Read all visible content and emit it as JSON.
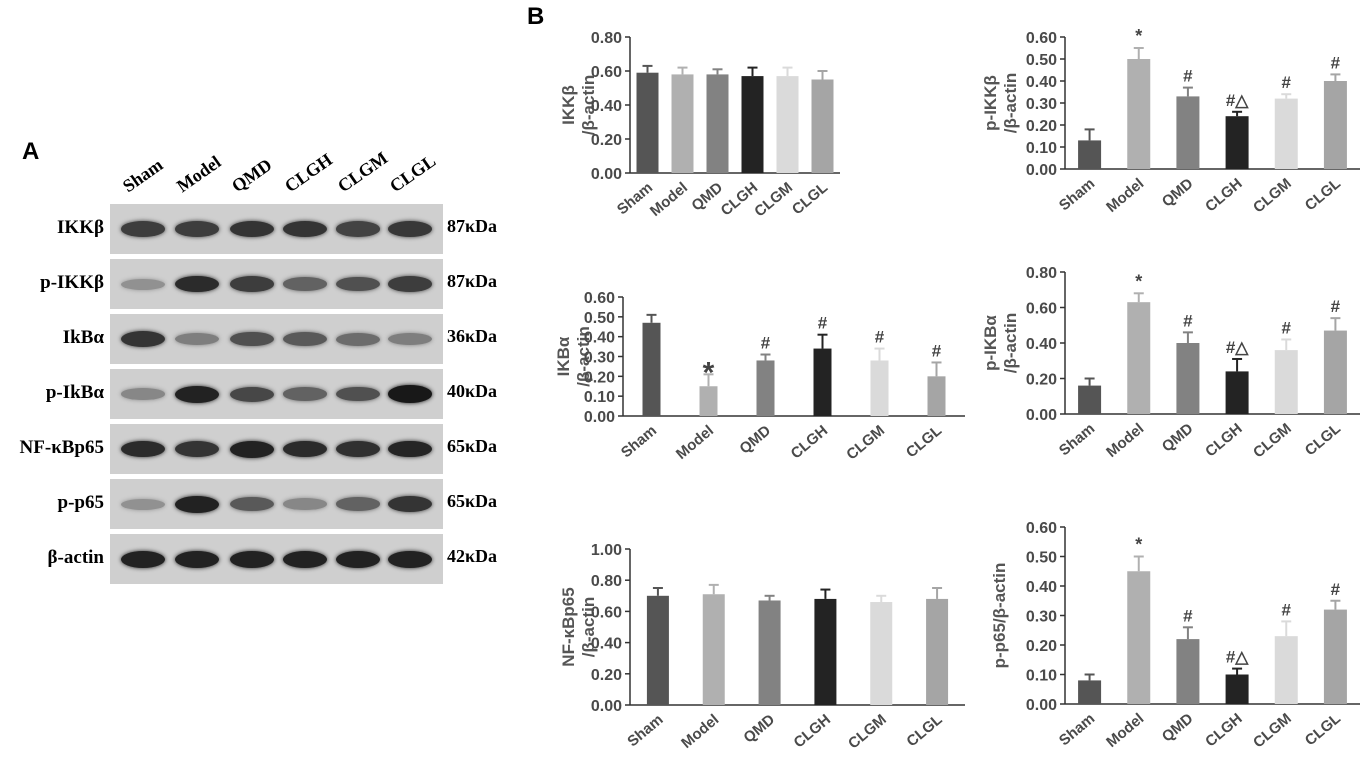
{
  "panel_a_letter": "A",
  "panel_b_letter": "B",
  "blot": {
    "lanes": [
      "Sham",
      "Model",
      "QMD",
      "CLGH",
      "CLGM",
      "CLGL"
    ],
    "rows": [
      {
        "label": "IKKβ",
        "kda": "87κDa",
        "intensity": [
          0.75,
          0.75,
          0.8,
          0.8,
          0.72,
          0.78
        ]
      },
      {
        "label": "p-IKKβ",
        "kda": "87κDa",
        "intensity": [
          0.3,
          0.85,
          0.75,
          0.55,
          0.65,
          0.75
        ]
      },
      {
        "label": "IkBα",
        "kda": "36κDa",
        "intensity": [
          0.8,
          0.4,
          0.65,
          0.6,
          0.5,
          0.4
        ]
      },
      {
        "label": "p-IkBα",
        "kda": "40κDa",
        "intensity": [
          0.35,
          0.9,
          0.7,
          0.55,
          0.65,
          0.95
        ]
      },
      {
        "label": "NF-κBp65",
        "kda": "65κDa",
        "intensity": [
          0.85,
          0.8,
          0.9,
          0.85,
          0.82,
          0.88
        ]
      },
      {
        "label": "p-p65",
        "kda": "65κDa",
        "intensity": [
          0.3,
          0.9,
          0.6,
          0.35,
          0.55,
          0.8
        ]
      },
      {
        "label": "β-actin",
        "kda": "42κDa",
        "intensity": [
          0.9,
          0.9,
          0.9,
          0.9,
          0.9,
          0.9
        ]
      }
    ]
  },
  "colors": [
    "#555555",
    "#b0b0b0",
    "#828282",
    "#232323",
    "#dadada",
    "#a5a5a5"
  ],
  "chart_data": [
    {
      "type": "bar",
      "ylabel": [
        "IKKβ",
        "/β-actin"
      ],
      "categories": [
        "Sham",
        "Model",
        "QMD",
        "CLGH",
        "CLGM",
        "CLGL"
      ],
      "values": [
        0.59,
        0.58,
        0.58,
        0.57,
        0.57,
        0.55
      ],
      "errors": [
        0.04,
        0.04,
        0.03,
        0.05,
        0.05,
        0.05
      ],
      "marks": [
        "",
        "",
        "",
        "",
        "",
        ""
      ],
      "ylim": [
        0,
        0.8
      ],
      "ticks": [
        "0.00",
        "0.20",
        "0.40",
        "0.60",
        "0.80"
      ]
    },
    {
      "type": "bar",
      "ylabel": [
        "p-IKKβ",
        "/β-actin"
      ],
      "categories": [
        "Sham",
        "Model",
        "QMD",
        "CLGH",
        "CLGM",
        "CLGL"
      ],
      "values": [
        0.13,
        0.5,
        0.33,
        0.24,
        0.32,
        0.4
      ],
      "errors": [
        0.05,
        0.05,
        0.04,
        0.02,
        0.02,
        0.03
      ],
      "marks": [
        "",
        "*",
        "#",
        "#△",
        "#",
        "#"
      ],
      "ylim": [
        0,
        0.6
      ],
      "ticks": [
        "0.00",
        "0.10",
        "0.20",
        "0.30",
        "0.40",
        "0.50",
        "0.60"
      ]
    },
    {
      "type": "bar",
      "ylabel": [
        "IKBα",
        "/β-actin"
      ],
      "categories": [
        "Sham",
        "Model",
        "QMD",
        "CLGH",
        "CLGM",
        "CLGL"
      ],
      "values": [
        0.47,
        0.15,
        0.28,
        0.34,
        0.28,
        0.2
      ],
      "errors": [
        0.04,
        0.06,
        0.03,
        0.07,
        0.06,
        0.07
      ],
      "marks": [
        "",
        "*",
        "#",
        "#",
        "#",
        "#"
      ],
      "ylim": [
        0,
        0.6
      ],
      "ticks": [
        "0.00",
        "0.10",
        "0.20",
        "0.30",
        "0.40",
        "0.50",
        "0.60"
      ]
    },
    {
      "type": "bar",
      "ylabel": [
        "p-IKBα",
        "/β-actin"
      ],
      "categories": [
        "Sham",
        "Model",
        "QMD",
        "CLGH",
        "CLGM",
        "CLGL"
      ],
      "values": [
        0.16,
        0.63,
        0.4,
        0.24,
        0.36,
        0.47
      ],
      "errors": [
        0.04,
        0.05,
        0.06,
        0.07,
        0.06,
        0.07
      ],
      "marks": [
        "",
        "*",
        "#",
        "#△",
        "#",
        "#"
      ],
      "ylim": [
        0,
        0.8
      ],
      "ticks": [
        "0.00",
        "0.20",
        "0.40",
        "0.60",
        "0.80"
      ]
    },
    {
      "type": "bar",
      "ylabel": [
        "NF-κBp65",
        "/β-actin"
      ],
      "categories": [
        "Sham",
        "Model",
        "QMD",
        "CLGH",
        "CLGM",
        "CLGL"
      ],
      "values": [
        0.7,
        0.71,
        0.67,
        0.68,
        0.66,
        0.68
      ],
      "errors": [
        0.05,
        0.06,
        0.03,
        0.06,
        0.04,
        0.07
      ],
      "marks": [
        "",
        "",
        "",
        "",
        "",
        ""
      ],
      "ylim": [
        0,
        1.0
      ],
      "ticks": [
        "0.00",
        "0.20",
        "0.40",
        "0.60",
        "0.80",
        "1.00"
      ]
    },
    {
      "type": "bar",
      "ylabel": [
        "p-p65/β-actin"
      ],
      "categories": [
        "Sham",
        "Model",
        "QMD",
        "CLGH",
        "CLGM",
        "CLGL"
      ],
      "values": [
        0.08,
        0.45,
        0.22,
        0.1,
        0.23,
        0.32
      ],
      "errors": [
        0.02,
        0.05,
        0.04,
        0.02,
        0.05,
        0.03
      ],
      "marks": [
        "",
        "*",
        "#",
        "#△",
        "#",
        "#"
      ],
      "ylim": [
        0,
        0.6
      ],
      "ticks": [
        "0.00",
        "0.10",
        "0.20",
        "0.30",
        "0.40",
        "0.50",
        "0.60"
      ]
    }
  ]
}
